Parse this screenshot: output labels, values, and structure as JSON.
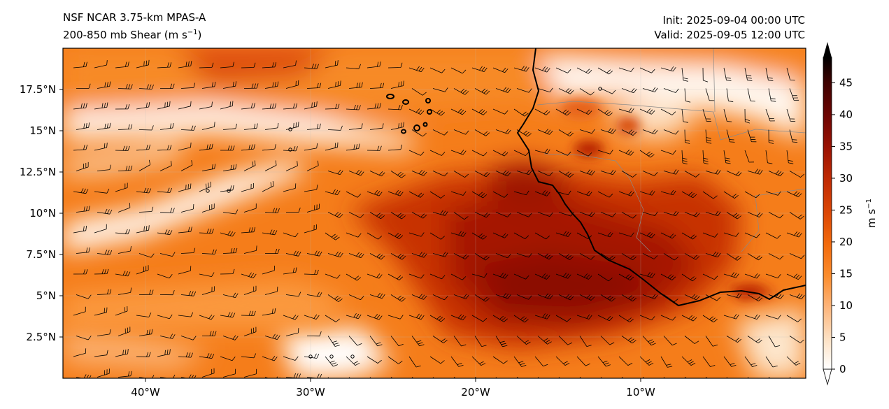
{
  "header": {
    "model_title": "NSF NCAR 3.75-km MPAS-A",
    "field_title": "200-850 mb Shear (m s",
    "field_title_exp": "−1",
    "field_title_close": ")",
    "init_text": "Init: 2025-09-04 00:00 UTC",
    "valid_text": "Valid: 2025-09-05 12:00 UTC"
  },
  "map": {
    "lon_ticks": [
      "40°W",
      "30°W",
      "20°W",
      "10°W"
    ],
    "lat_ticks": [
      "17.5°N",
      "15°N",
      "12.5°N",
      "10°N",
      "7.5°N",
      "5°N",
      "2.5°N"
    ],
    "extent": {
      "lon_min": -45,
      "lon_max": 0,
      "lat_min": 0,
      "lat_max": 20
    }
  },
  "colorbar": {
    "label": "m s",
    "label_exp": "−1",
    "ticks": [
      "0",
      "5",
      "10",
      "15",
      "20",
      "25",
      "30",
      "35",
      "40",
      "45"
    ],
    "min": 0,
    "max": 49,
    "colors": [
      "#ffffff",
      "#fde0c2",
      "#fdb47a",
      "#fb8c2c",
      "#f26a0c",
      "#dc4705",
      "#bf2a03",
      "#9a1203",
      "#6e0603",
      "#3d0201",
      "#000000"
    ]
  }
}
